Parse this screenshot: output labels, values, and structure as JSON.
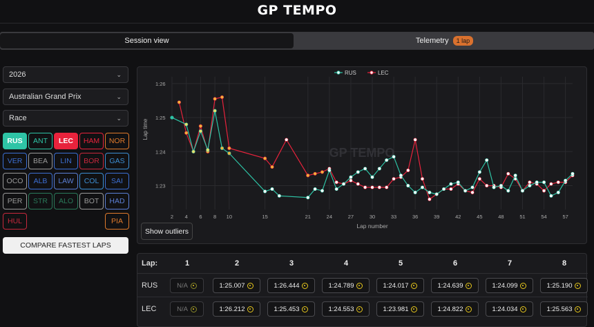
{
  "header": {
    "logo_a": "GP",
    "logo_b": "TEMPO"
  },
  "tabs": [
    {
      "label": "Session view",
      "active": true
    },
    {
      "label": "Telemetry",
      "badge": "1 lap",
      "active": false
    }
  ],
  "filters": {
    "year": "2026",
    "event": "Australian Grand Prix",
    "session": "Race"
  },
  "drivers": [
    {
      "code": "RUS",
      "color": "#2ec4a6",
      "selected": true
    },
    {
      "code": "ANT",
      "color": "#2ec4a6",
      "selected": false
    },
    {
      "code": "LEC",
      "color": "#e8233c",
      "selected": true
    },
    {
      "code": "HAM",
      "color": "#e8233c",
      "selected": false
    },
    {
      "code": "NOR",
      "color": "#e07a2b",
      "selected": false
    },
    {
      "code": "VER",
      "color": "#3c6fd4",
      "selected": false
    },
    {
      "code": "BEA",
      "color": "#9a9a9a",
      "selected": false
    },
    {
      "code": "LIN",
      "color": "#3c6fd4",
      "selected": false
    },
    {
      "code": "BOR",
      "color": "#c8283c",
      "selected": false
    },
    {
      "code": "GAS",
      "color": "#3c8fd4",
      "selected": false
    },
    {
      "code": "OCO",
      "color": "#9a9a9a",
      "selected": false
    },
    {
      "code": "ALB",
      "color": "#3c6fd4",
      "selected": false
    },
    {
      "code": "LAW",
      "color": "#5b7fd6",
      "selected": false
    },
    {
      "code": "COL",
      "color": "#3c8fd4",
      "selected": false
    },
    {
      "code": "SAI",
      "color": "#3c6fd4",
      "selected": false
    },
    {
      "code": "PER",
      "color": "#9a9a9a",
      "selected": false
    },
    {
      "code": "STR",
      "color": "#2a7a5a",
      "selected": false
    },
    {
      "code": "ALO",
      "color": "#2a7a5a",
      "selected": false
    },
    {
      "code": "BOT",
      "color": "#9a9a9a",
      "selected": false
    },
    {
      "code": "HAD",
      "color": "#5b7fd6",
      "selected": false
    },
    {
      "code": "HUL",
      "color": "#c8283c",
      "selected": false
    },
    {
      "code": "PIA",
      "color": "#e07a2b",
      "selected": false
    }
  ],
  "compare_label": "COMPARE FASTEST LAPS",
  "outliers_label": "Show outliers",
  "watermark": "GP TEMPO",
  "chart_data": {
    "type": "line",
    "xlabel": "Lap number",
    "ylabel": "Lap time",
    "x_ticks": [
      2,
      4,
      6,
      8,
      10,
      15,
      21,
      24,
      27,
      30,
      33,
      36,
      39,
      42,
      45,
      48,
      51,
      54,
      57
    ],
    "y_ticks": [
      "1:23",
      "1:24",
      "1:25",
      "1:26"
    ],
    "ylim_seconds": [
      82.3,
      86.2
    ],
    "xlim": [
      2,
      58
    ],
    "legend_position": "top-center",
    "series": [
      {
        "name": "RUS",
        "color": "#2ec4a6",
        "x": [
          2,
          4,
          5,
          6,
          7,
          8,
          9,
          10,
          15,
          16,
          17,
          21,
          22,
          23,
          24,
          25,
          26,
          27,
          28,
          29,
          30,
          31,
          32,
          33,
          34,
          35,
          36,
          37,
          38,
          39,
          40,
          41,
          42,
          43,
          44,
          45,
          46,
          47,
          48,
          49,
          50,
          51,
          52,
          53,
          54,
          55,
          56,
          57,
          58
        ],
        "y": [
          85.0,
          84.8,
          84.0,
          84.6,
          84.05,
          85.2,
          84.1,
          83.95,
          82.83,
          82.9,
          82.7,
          82.65,
          82.9,
          82.85,
          83.45,
          82.9,
          83.05,
          83.25,
          83.4,
          83.5,
          83.25,
          83.5,
          83.75,
          83.85,
          83.3,
          83.0,
          82.8,
          82.95,
          82.8,
          82.75,
          82.9,
          83.05,
          83.1,
          82.85,
          82.95,
          83.4,
          83.75,
          82.95,
          83.0,
          82.85,
          83.3,
          82.85,
          83.0,
          83.1,
          83.1,
          82.7,
          82.8,
          83.15,
          83.35
        ]
      },
      {
        "name": "LEC",
        "color": "#e8233c",
        "x": [
          3,
          4,
          5,
          6,
          7,
          8,
          9,
          10,
          15,
          16,
          18,
          21,
          22,
          23,
          24,
          25,
          26,
          27,
          28,
          29,
          30,
          31,
          32,
          33,
          34,
          35,
          36,
          37,
          38,
          39,
          40,
          41,
          42,
          43,
          44,
          45,
          46,
          47,
          48,
          49,
          50,
          51,
          52,
          53,
          54,
          55,
          56,
          57,
          58
        ],
        "y": [
          85.45,
          84.55,
          84.0,
          84.75,
          84.0,
          85.55,
          85.6,
          84.1,
          83.8,
          83.55,
          84.35,
          83.3,
          83.35,
          83.4,
          83.5,
          83.1,
          83.05,
          83.15,
          83.05,
          82.95,
          82.95,
          82.95,
          82.95,
          83.2,
          83.25,
          83.45,
          84.35,
          83.2,
          82.6,
          82.75,
          82.9,
          82.9,
          83.05,
          82.85,
          82.8,
          83.2,
          83.0,
          83.0,
          82.95,
          83.35,
          83.2,
          82.85,
          83.1,
          83.05,
          82.85,
          83.05,
          83.1,
          83.1,
          83.3
        ]
      }
    ]
  },
  "table": {
    "lap_label": "Lap:",
    "laps": [
      "1",
      "2",
      "3",
      "4",
      "5",
      "6",
      "7",
      "8"
    ],
    "rows": [
      {
        "driver": "RUS",
        "times": [
          "N/A",
          "1:25.007",
          "1:26.444",
          "1:24.789",
          "1:24.017",
          "1:24.639",
          "1:24.099",
          "1:25.190"
        ]
      },
      {
        "driver": "LEC",
        "times": [
          "N/A",
          "1:26.212",
          "1:25.453",
          "1:24.553",
          "1:23.981",
          "1:24.822",
          "1:24.034",
          "1:25.563"
        ]
      }
    ]
  }
}
